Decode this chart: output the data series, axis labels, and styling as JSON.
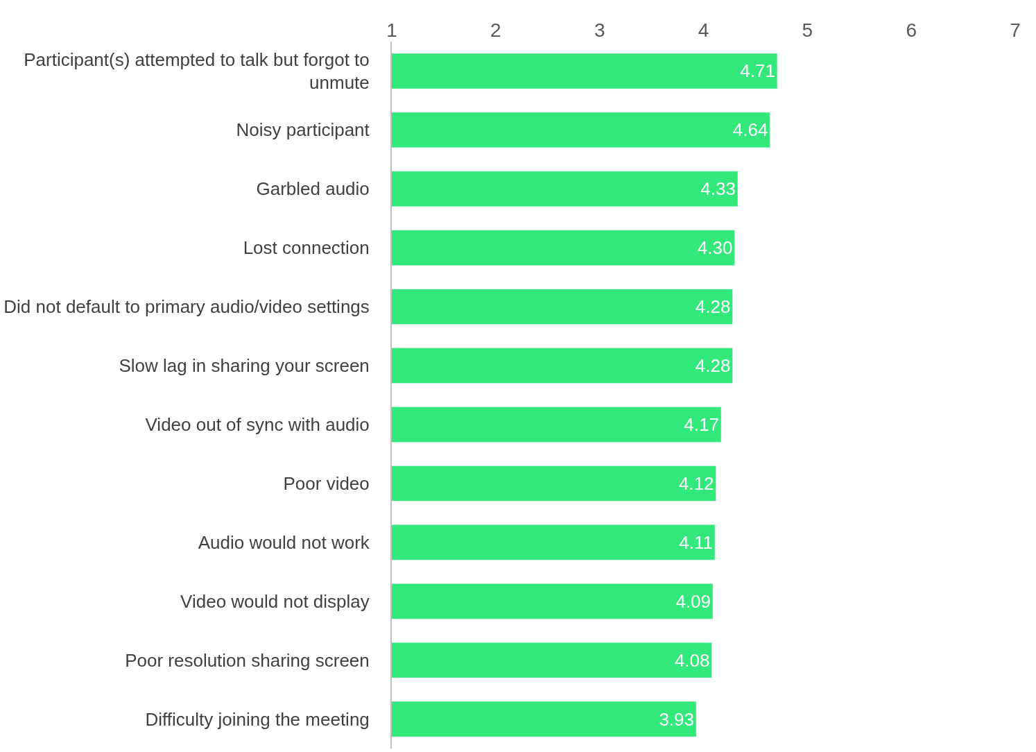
{
  "chart_data": {
    "type": "bar",
    "orientation": "horizontal",
    "categories": [
      "Participant(s) attempted to talk but forgot to unmute",
      "Noisy participant",
      "Garbled audio",
      "Lost connection",
      "Did not default to primary audio/video settings",
      "Slow lag in sharing your screen",
      "Video out of sync with audio",
      "Poor video",
      "Audio would not work",
      "Video would not display",
      "Poor resolution sharing screen",
      "Difficulty joining the meeting"
    ],
    "values": [
      4.71,
      4.64,
      4.33,
      4.3,
      4.28,
      4.28,
      4.17,
      4.12,
      4.11,
      4.09,
      4.08,
      3.93
    ],
    "value_labels": [
      "4.71",
      "4.64",
      "4.33",
      "4.30",
      "4.28",
      "4.28",
      "4.17",
      "4.12",
      "4.11",
      "4.09",
      "4.08",
      "3.93"
    ],
    "color": "#33e87a",
    "xlim": [
      1,
      7
    ],
    "xticks": [
      1,
      2,
      3,
      4,
      5,
      6,
      7
    ]
  }
}
